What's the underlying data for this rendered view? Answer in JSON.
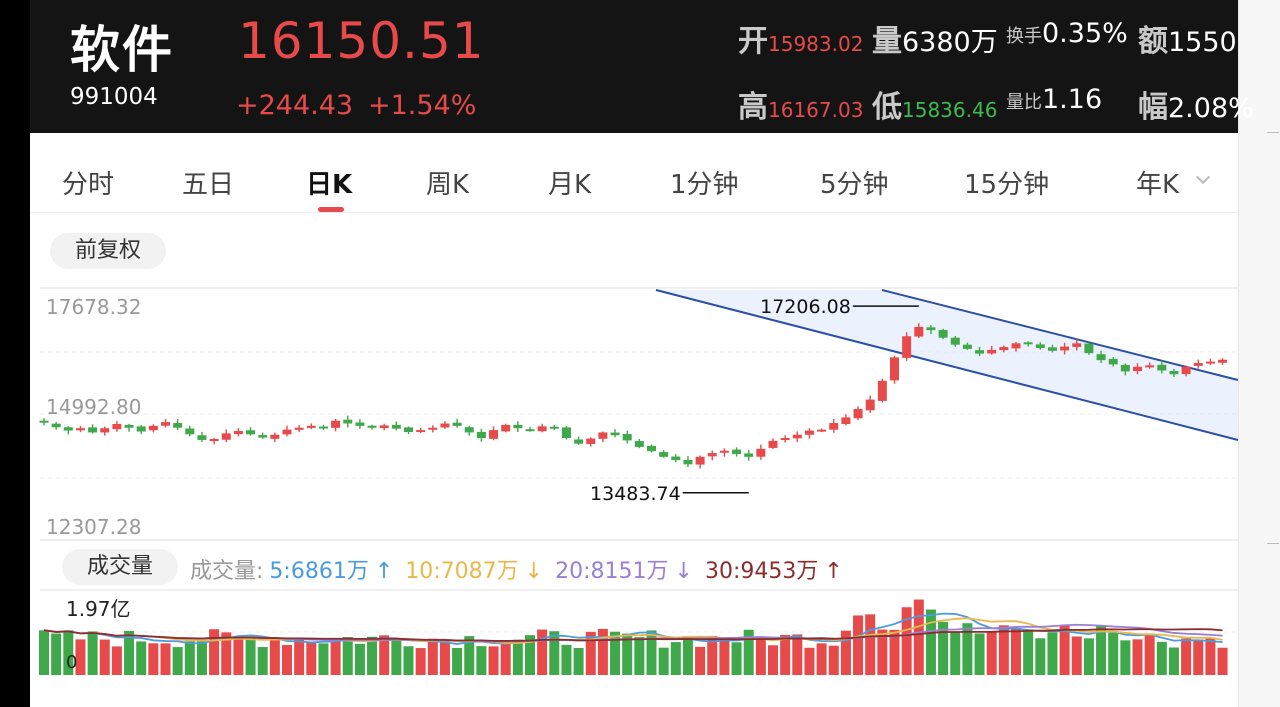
{
  "stock": {
    "name": "软件",
    "code": "991004",
    "price": "16150.51",
    "change": "+244.43",
    "change_pct": "+1.54%"
  },
  "stats": {
    "open_label": "开",
    "open": "15983.02",
    "volume_label": "量",
    "volume": "6380万",
    "turnover_label": "换手",
    "turnover": "0.35%",
    "amount_label": "额",
    "amount": "1550",
    "high_label": "高",
    "high": "16167.03",
    "low_label": "低",
    "low": "15836.46",
    "vol_ratio_label": "量比",
    "vol_ratio": "1.16",
    "amplitude_label": "幅",
    "amplitude": "2.08%"
  },
  "tabs": [
    {
      "label": "分时"
    },
    {
      "label": "五日"
    },
    {
      "label": "日K"
    },
    {
      "label": "周K"
    },
    {
      "label": "月K"
    },
    {
      "label": "1分钟"
    },
    {
      "label": "5分钟"
    },
    {
      "label": "15分钟"
    },
    {
      "label": "年K"
    }
  ],
  "active_tab": "日K",
  "adjust_label": "前复权",
  "chart_data": [
    {
      "type": "candlestick",
      "title": "",
      "y_ticks": [
        "17678.32",
        "14992.80",
        "12307.28"
      ],
      "ylim": [
        12307.28,
        17678.32
      ],
      "annotations": [
        {
          "label": "17206.08",
          "value": 17206.08,
          "kind": "max"
        },
        {
          "label": "13483.74",
          "value": 13483.74,
          "kind": "min"
        }
      ],
      "trend_channel": true,
      "closes": [
        14810,
        14710,
        14640,
        14690,
        14600,
        14690,
        14780,
        14700,
        14620,
        14740,
        14820,
        14700,
        14560,
        14440,
        14460,
        14580,
        14630,
        14560,
        14490,
        14550,
        14660,
        14700,
        14740,
        14720,
        14850,
        14790,
        14740,
        14700,
        14750,
        14680,
        14610,
        14650,
        14700,
        14790,
        14740,
        14600,
        14480,
        14650,
        14760,
        14690,
        14640,
        14730,
        14690,
        14480,
        14360,
        14470,
        14600,
        14540,
        14430,
        14290,
        14200,
        14080,
        14010,
        13920,
        14080,
        14160,
        14210,
        14140,
        14080,
        14250,
        14420,
        14480,
        14550,
        14640,
        14660,
        14800,
        14920,
        15100,
        15300,
        15700,
        16200,
        16650,
        16850,
        16780,
        16620,
        16470,
        16380,
        16280,
        16360,
        16420,
        16500,
        16490,
        16400,
        16340,
        16430,
        16500,
        16290,
        16140,
        16050,
        15900,
        16000,
        16030,
        15920,
        15840,
        16000,
        16080,
        16110,
        16150
      ],
      "colors": {
        "up": "#e64a4a",
        "down": "#3fa84a"
      }
    },
    {
      "type": "bar",
      "title": "",
      "y_ticks": [
        "1.97亿",
        "0"
      ],
      "ylim": [
        0,
        197000000
      ]
    }
  ],
  "volume_panel": {
    "label": "成交量",
    "prefix": "成交量:",
    "ma5": "5:6861万",
    "ma5_arrow": "↑",
    "ma10": "10:7087万",
    "ma10_arrow": "↓",
    "ma20": "20:8151万",
    "ma20_arrow": "↓",
    "ma30": "30:9453万",
    "ma30_arrow": "↑",
    "colors": {
      "ma5": "#4a9be0",
      "ma10": "#e8b84a",
      "ma20": "#9a7fd4",
      "ma30": "#8b2d2d"
    }
  }
}
